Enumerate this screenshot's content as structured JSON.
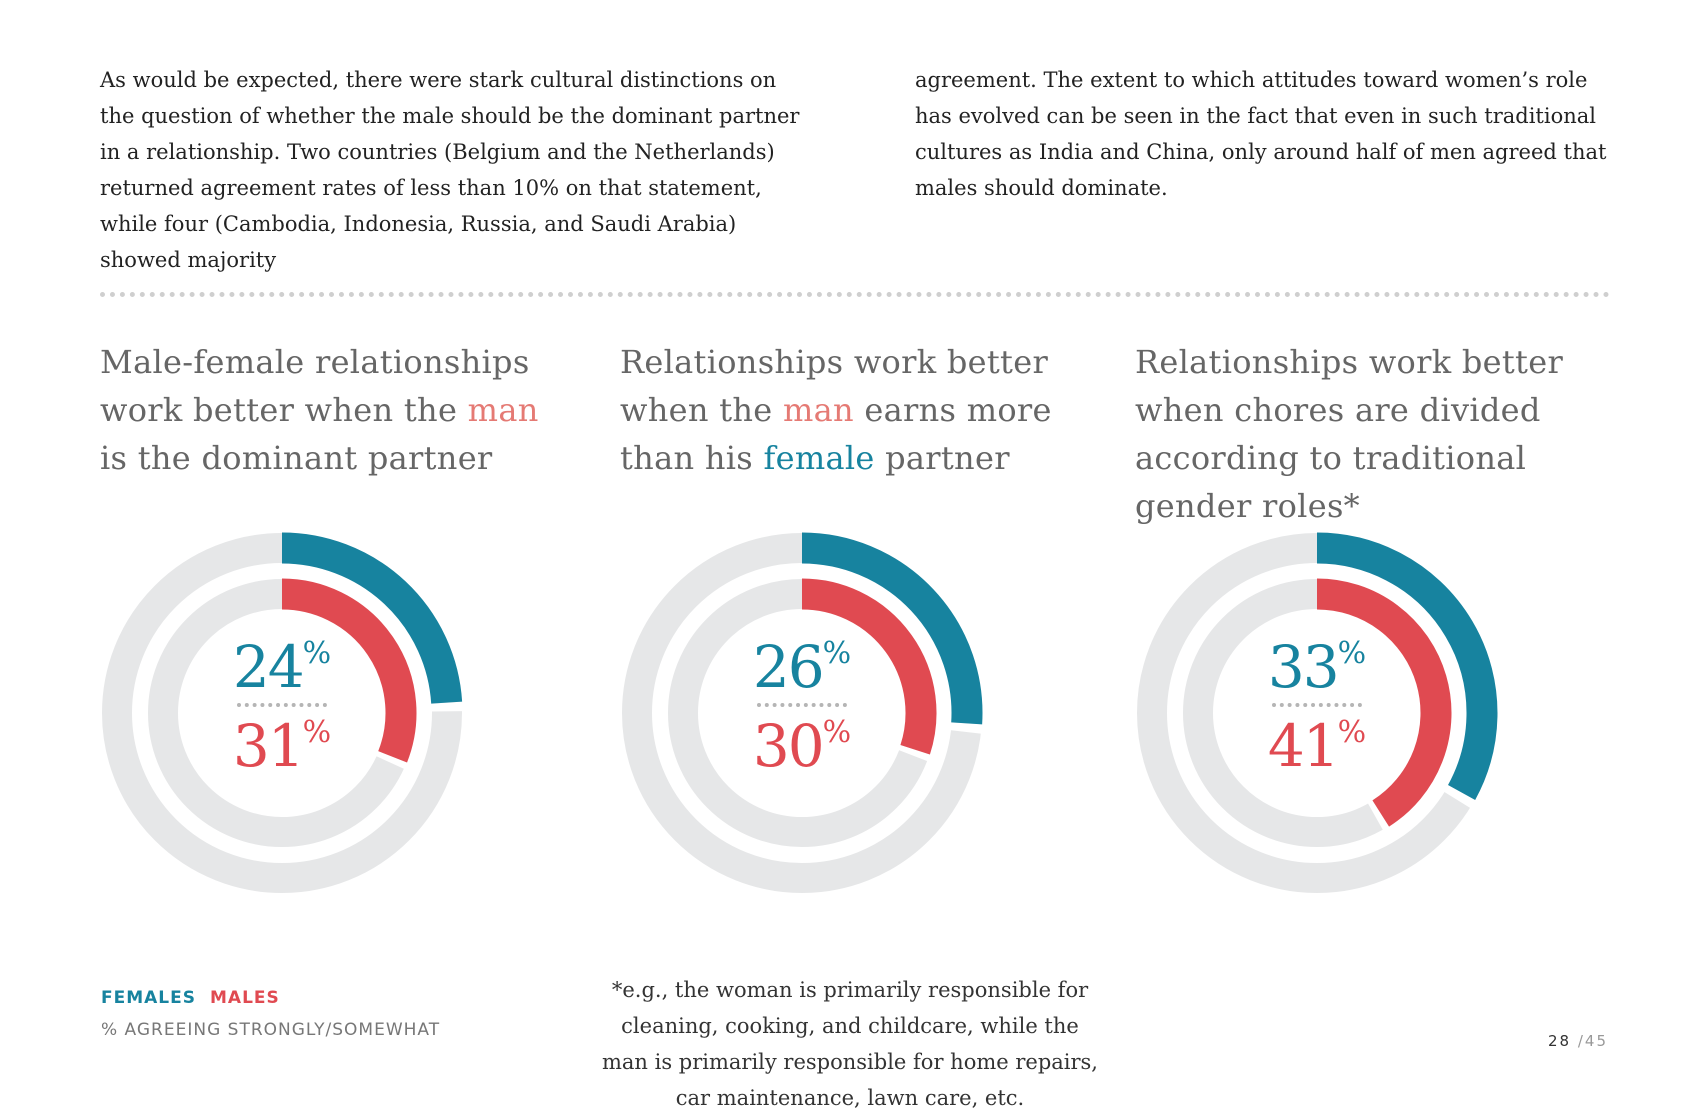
{
  "intro": {
    "paragraph_1": "As would be expected, there were stark cultural distinctions on the question of whether the male should be the dominant partner in a relationship. Two countries (Belgium and the Netherlands) returned agreement rates of less than 10% on that statement, while four (Cambodia, Indonesia, Russia, and Saudi Arabia) showed majority",
    "paragraph_2": "agreement. The extent to which attitudes toward women’s role has evolved can be seen in the fact that even in such traditional cultures as India and China, only around half of men agreed that males should dominate."
  },
  "chart_data": [
    {
      "type": "donut",
      "title_parts": [
        "Male-female relationships work better when the ",
        "man",
        " is the dominant partner"
      ],
      "series": [
        {
          "name": "FEMALES",
          "value": 24
        },
        {
          "name": "MALES",
          "value": 31
        }
      ]
    },
    {
      "type": "donut",
      "title_parts": [
        "Relationships work better when the ",
        "man",
        " earns more than his ",
        "female",
        " partner"
      ],
      "series": [
        {
          "name": "FEMALES",
          "value": 26
        },
        {
          "name": "MALES",
          "value": 30
        }
      ]
    },
    {
      "type": "donut",
      "title_parts": [
        "Relationships work better when chores are divided according to traditional gender roles*"
      ],
      "series": [
        {
          "name": "FEMALES",
          "value": 33
        },
        {
          "name": "MALES",
          "value": 41
        }
      ]
    }
  ],
  "percent_sign": "%",
  "legend": {
    "females": "FEMALES",
    "males": "MALES",
    "subtitle": "% AGREEING STRONGLY/SOMEWHAT"
  },
  "footnote": "*e.g., the woman is primarily responsible for cleaning, cooking, and childcare, while the man is primarily responsible for home repairs, car maintenance, lawn care, etc.",
  "page": {
    "current": "28",
    "total": "/45"
  },
  "colors": {
    "female": "#17839f",
    "male": "#e04a51",
    "track": "#e6e7e8",
    "title_male": "#e57a74"
  }
}
